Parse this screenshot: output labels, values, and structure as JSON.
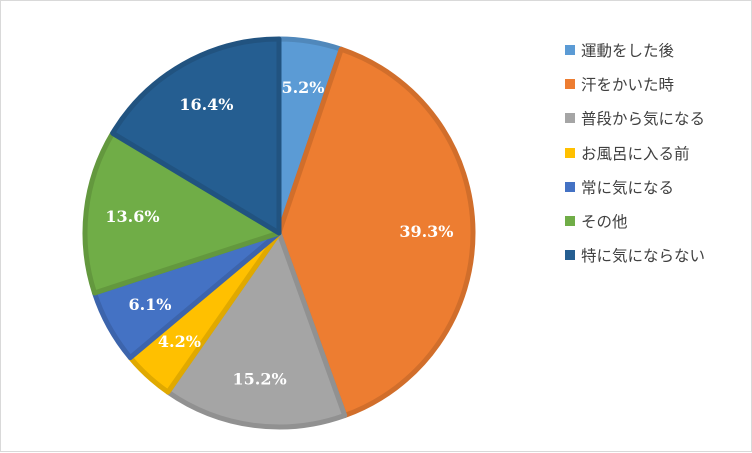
{
  "chart_data": {
    "type": "pie",
    "title": "",
    "legend_position": "right",
    "slices": [
      {
        "label": "運動をした後",
        "value": 5.2,
        "value_label": "5.2%",
        "color": "#5b9bd5"
      },
      {
        "label": "汗をかいた時",
        "value": 39.3,
        "value_label": "39.3%",
        "color": "#ed7d31"
      },
      {
        "label": "普段から気になる",
        "value": 15.2,
        "value_label": "15.2%",
        "color": "#a5a5a5"
      },
      {
        "label": "お風呂に入る前",
        "value": 4.2,
        "value_label": "4.2%",
        "color": "#ffc000"
      },
      {
        "label": "常に気になる",
        "value": 6.1,
        "value_label": "6.1%",
        "color": "#4472c4"
      },
      {
        "label": "その他",
        "value": 13.6,
        "value_label": "13.6%",
        "color": "#70ad47"
      },
      {
        "label": "特に気にならない",
        "value": 16.4,
        "value_label": "16.4%",
        "color": "#255e91"
      }
    ]
  }
}
